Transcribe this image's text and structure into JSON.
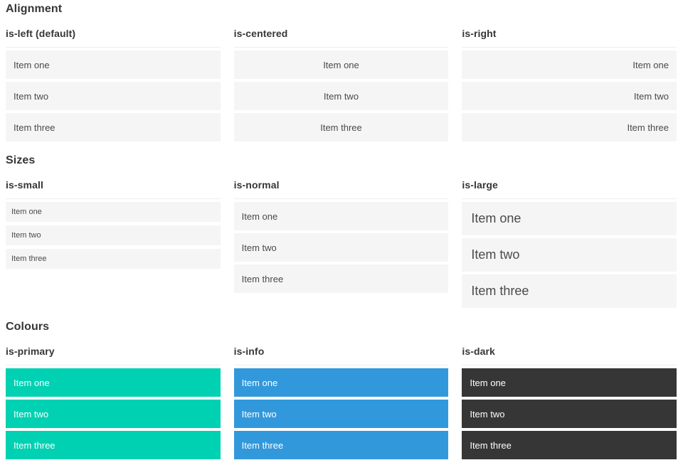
{
  "page": {
    "sections": [
      {
        "title": "Alignment",
        "columns": [
          {
            "label": "is-left (default)",
            "items": [
              "Item one",
              "Item two",
              "Item three"
            ]
          },
          {
            "label": "is-centered",
            "items": [
              "Item one",
              "Item two",
              "Item three"
            ]
          },
          {
            "label": "is-right",
            "items": [
              "Item one",
              "Item two",
              "Item three"
            ]
          }
        ]
      },
      {
        "title": "Sizes",
        "columns": [
          {
            "label": "is-small",
            "items": [
              "Item one",
              "Item two",
              "Item three"
            ]
          },
          {
            "label": "is-normal",
            "items": [
              "Item one",
              "Item two",
              "Item three"
            ]
          },
          {
            "label": "is-large",
            "items": [
              "Item one",
              "Item two",
              "Item three"
            ]
          }
        ]
      },
      {
        "title": "Colours",
        "columns": [
          {
            "label": "is-primary",
            "items": [
              "Item one",
              "Item two",
              "Item three"
            ]
          },
          {
            "label": "is-info",
            "items": [
              "Item one",
              "Item two",
              "Item three"
            ]
          },
          {
            "label": "is-dark",
            "items": [
              "Item one",
              "Item two",
              "Item three"
            ]
          }
        ]
      }
    ],
    "colors": {
      "primary": "#00d1b2",
      "info": "#3298dc",
      "dark": "#363636",
      "item_background": "#f5f5f5",
      "item_text": "#4a4a4a",
      "heading_text": "#363636",
      "divider": "#ededed"
    }
  }
}
